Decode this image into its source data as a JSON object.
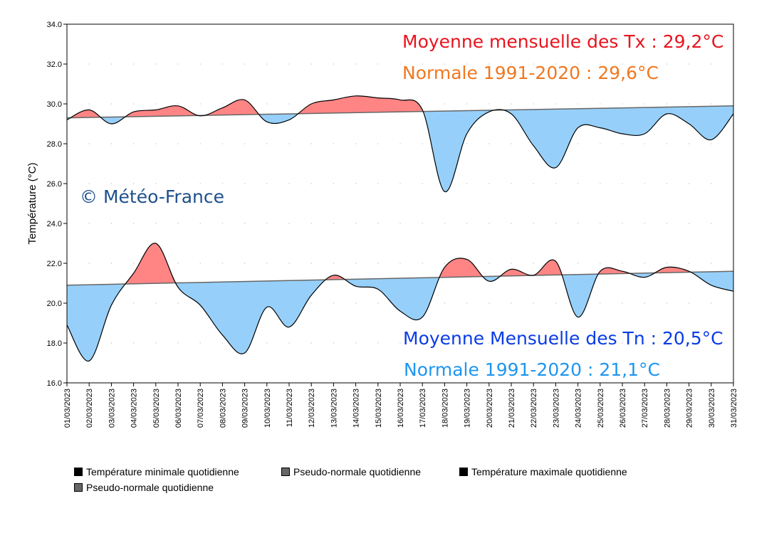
{
  "chart_data": {
    "type": "area",
    "ylabel": "Température (°C)",
    "ylim": [
      16,
      34
    ],
    "yticks": [
      "16.0",
      "18.0",
      "20.0",
      "22.0",
      "24.0",
      "26.0",
      "28.0",
      "30.0",
      "32.0",
      "34.0"
    ],
    "categories": [
      "01/03/2023",
      "02/03/2023",
      "03/03/2023",
      "04/03/2023",
      "05/03/2023",
      "06/03/2023",
      "07/03/2023",
      "08/03/2023",
      "09/03/2023",
      "10/03/2023",
      "11/03/2023",
      "12/03/2023",
      "13/03/2023",
      "14/03/2023",
      "15/03/2023",
      "16/03/2023",
      "17/03/2023",
      "18/03/2023",
      "19/03/2023",
      "20/03/2023",
      "21/03/2023",
      "22/03/2023",
      "23/03/2023",
      "24/03/2023",
      "25/03/2023",
      "26/03/2023",
      "27/03/2023",
      "28/03/2023",
      "29/03/2023",
      "30/03/2023",
      "31/03/2023"
    ],
    "grid": true,
    "series": [
      {
        "name": "Température maximale quotidienne",
        "values": [
          29.2,
          29.7,
          29.0,
          29.6,
          29.7,
          29.9,
          29.4,
          29.8,
          30.2,
          29.1,
          29.2,
          30.0,
          30.2,
          30.4,
          30.3,
          30.2,
          29.7,
          25.6,
          28.5,
          29.6,
          29.5,
          27.9,
          26.8,
          28.8,
          28.8,
          28.5,
          28.5,
          29.5,
          29.0,
          28.2,
          29.5
        ]
      },
      {
        "name": "Pseudo-normale quotidienne",
        "values_start_end": [
          29.3,
          29.9
        ]
      },
      {
        "name": "Température minimale quotidienne",
        "values": [
          18.9,
          17.1,
          19.9,
          21.5,
          23.0,
          20.8,
          19.9,
          18.4,
          17.5,
          19.8,
          18.8,
          20.4,
          21.4,
          20.85,
          20.7,
          19.6,
          19.3,
          21.8,
          22.2,
          21.1,
          21.7,
          21.4,
          22.1,
          19.3,
          21.6,
          21.6,
          21.3,
          21.8,
          21.6,
          20.9,
          20.6
        ]
      },
      {
        "name": "Pseudo-normale quotidienne",
        "values_start_end": [
          20.9,
          21.6
        ]
      }
    ],
    "colors": {
      "above": "#ff8585",
      "below": "#96d0fa",
      "line": "#000000",
      "normal_line": "#666666",
      "grid": "#a0a0d0"
    },
    "legend_placement": "bottom-left"
  },
  "annotations": {
    "tx_mean": "Moyenne mensuelle des Tx : 29,2°C",
    "tx_normal": "Normale 1991-2020 : 29,6°C",
    "tn_mean": "Moyenne Mensuelle des Tn : 20,5°C",
    "tn_normal": "Normale 1991-2020 : 21,1°C",
    "copyright": "© Météo-France",
    "colors": {
      "tx_mean": "#e8141e",
      "tx_normal": "#f07820",
      "tn_mean": "#0a3ce6",
      "tn_normal": "#1e96f0",
      "copyright": "#1e4f8c"
    }
  },
  "legend": [
    {
      "label": "Température minimale quotidienne",
      "color": "#000000"
    },
    {
      "label": "Pseudo-normale quotidienne",
      "color": "#666666"
    },
    {
      "label": "Température maximale quotidienne",
      "color": "#000000"
    },
    {
      "label": "Pseudo-normale quotidienne",
      "color": "#666666"
    }
  ]
}
